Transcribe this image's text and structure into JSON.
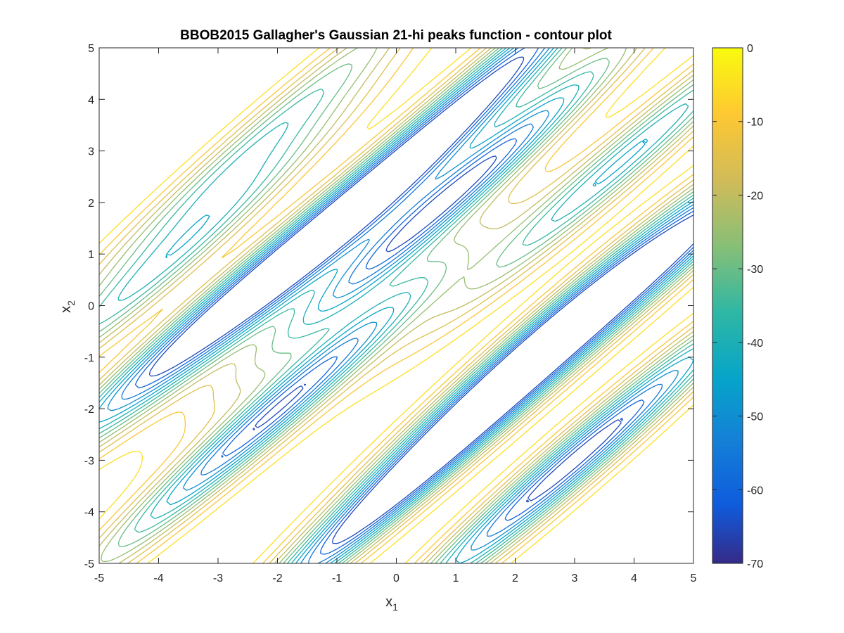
{
  "chart_data": {
    "type": "contour",
    "title": "BBOB2015 Gallagher's Gaussian 21-hi peaks function - contour plot",
    "xlabel": {
      "main": "x",
      "sub": "1"
    },
    "ylabel": {
      "main": "x",
      "sub": "2"
    },
    "xlim": [
      -5,
      5
    ],
    "ylim": [
      -5,
      5
    ],
    "xticks": [
      -5,
      -4,
      -3,
      -2,
      -1,
      0,
      1,
      2,
      3,
      4,
      5
    ],
    "yticks": [
      -5,
      -4,
      -3,
      -2,
      -1,
      0,
      1,
      2,
      3,
      4,
      5
    ],
    "colorbar": {
      "range": [
        -70,
        0
      ],
      "ticks": [
        0,
        -10,
        -20,
        -30,
        -40,
        -50,
        -60,
        -70
      ],
      "colormap": "parula"
    },
    "contour_levels": [
      -65,
      -60,
      -55,
      -50,
      -45,
      -40,
      -35,
      -30,
      -25,
      -20,
      -15,
      -10,
      -5
    ],
    "colormap_stops": [
      {
        "value": -70,
        "color": "#352a87"
      },
      {
        "value": -62,
        "color": "#0f5cdd"
      },
      {
        "value": -53,
        "color": "#1481d6"
      },
      {
        "value": -45,
        "color": "#06a4ca"
      },
      {
        "value": -36,
        "color": "#2eb7a4"
      },
      {
        "value": -27,
        "color": "#87bf77"
      },
      {
        "value": -18,
        "color": "#d1bb59"
      },
      {
        "value": -9,
        "color": "#fec832"
      },
      {
        "value": 0,
        "color": "#f9fb0e"
      }
    ],
    "valleys": [
      {
        "x1": 3.0,
        "x2": -3.0,
        "depth": 70
      },
      {
        "x1": 0.3,
        "x2": -3.3,
        "depth": 70
      },
      {
        "x1": 0.8,
        "x2": 2.0,
        "depth": 70
      },
      {
        "x1": 2.6,
        "x2": -0.5,
        "depth": 66
      },
      {
        "x1": -0.8,
        "x2": 1.6,
        "depth": 68
      },
      {
        "x1": -2.0,
        "x2": -2.0,
        "depth": 66
      },
      {
        "x1": 4.8,
        "x2": 1.1,
        "depth": 50
      },
      {
        "x1": 3.8,
        "x2": 2.8,
        "depth": 46
      },
      {
        "x1": -3.3,
        "x2": -0.4,
        "depth": 56
      },
      {
        "x1": -3.8,
        "x2": 0.9,
        "depth": 40
      },
      {
        "x1": -2.3,
        "x2": 3.2,
        "depth": 36
      },
      {
        "x1": 1.8,
        "x2": 4.6,
        "depth": 46
      }
    ]
  }
}
